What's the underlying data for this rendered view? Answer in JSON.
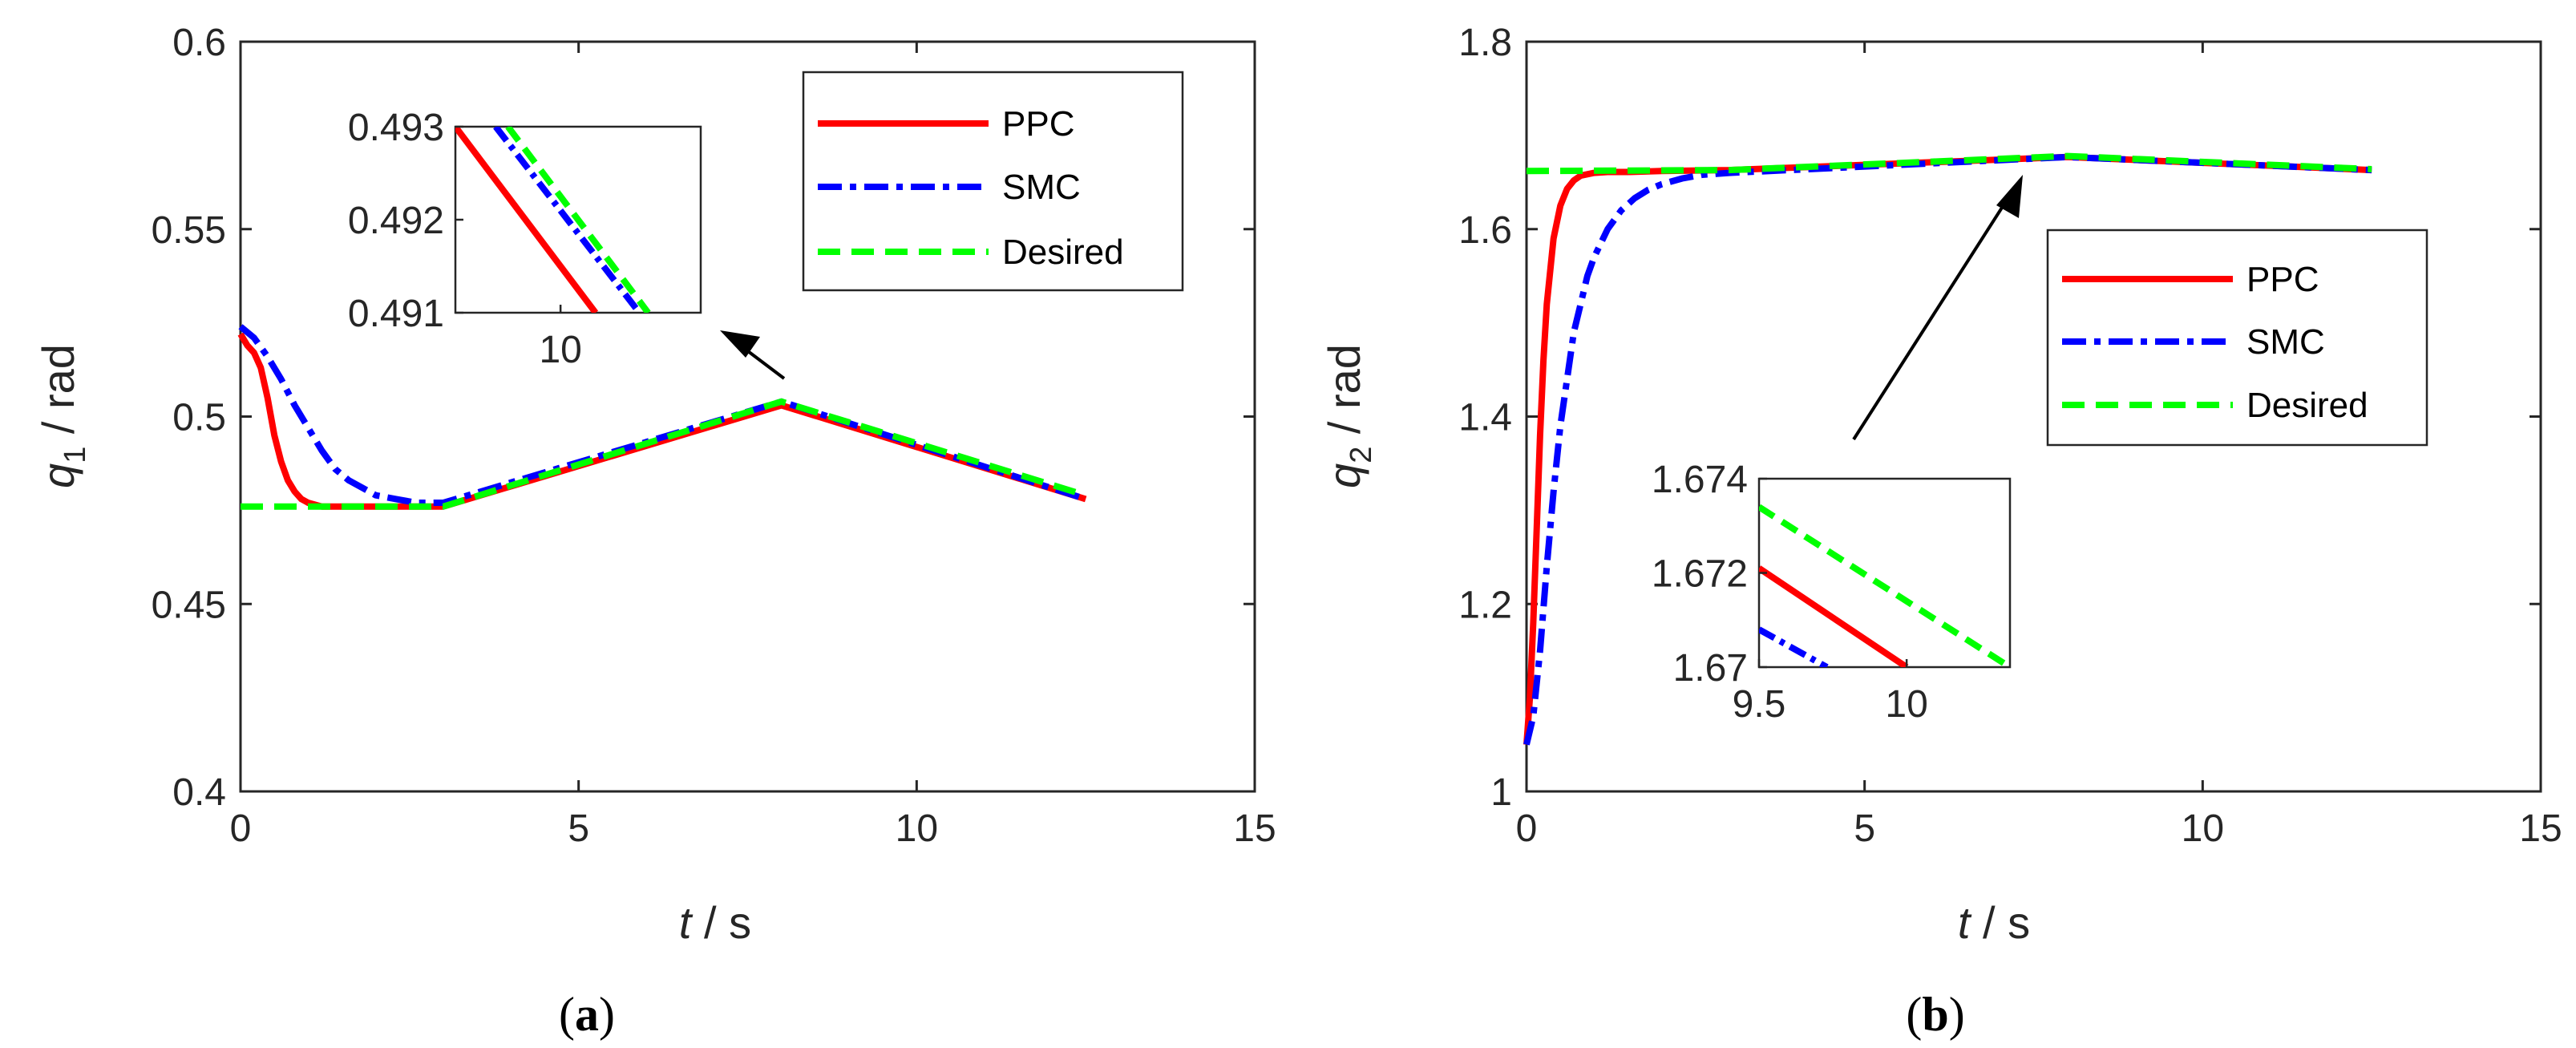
{
  "chart_data": [
    {
      "type": "line",
      "caption_open": "(",
      "caption_label": "a",
      "caption_close": ")",
      "ylabel_var": "q",
      "ylabel_sub": "1",
      "ylabel_unit": " / rad",
      "xlabel_var": "t",
      "xlabel_unit": " / s",
      "xlim": [
        0,
        15
      ],
      "ylim": [
        0.4,
        0.6
      ],
      "xticks": [
        "0",
        "5",
        "10",
        "15"
      ],
      "yticks": [
        "0.4",
        "0.45",
        "0.5",
        "0.55",
        "0.6"
      ],
      "ytick_values": [
        0.4,
        0.45,
        0.5,
        0.55,
        0.6
      ],
      "legend": [
        "PPC",
        "SMC",
        "Desired"
      ],
      "series": [
        {
          "name": "PPC",
          "color": "#ff0000",
          "style": "solid",
          "x": [
            0,
            0.1,
            0.2,
            0.3,
            0.4,
            0.5,
            0.6,
            0.7,
            0.8,
            0.9,
            1.0,
            1.2,
            1.5,
            2.0,
            3.0,
            8.0,
            12.5
          ],
          "y": [
            0.522,
            0.519,
            0.517,
            0.513,
            0.505,
            0.495,
            0.488,
            0.483,
            0.48,
            0.478,
            0.477,
            0.476,
            0.476,
            0.476,
            0.476,
            0.503,
            0.478
          ]
        },
        {
          "name": "SMC",
          "color": "#0000ff",
          "style": "dashdot",
          "x": [
            0,
            0.2,
            0.4,
            0.6,
            0.8,
            1.0,
            1.2,
            1.4,
            1.6,
            1.8,
            2.0,
            2.3,
            2.6,
            3.0,
            8.0,
            12.5
          ],
          "y": [
            0.524,
            0.521,
            0.516,
            0.51,
            0.503,
            0.497,
            0.491,
            0.486,
            0.483,
            0.481,
            0.479,
            0.478,
            0.477,
            0.477,
            0.504,
            0.478
          ]
        },
        {
          "name": "Desired",
          "color": "#00ff00",
          "style": "dashed",
          "x": [
            0,
            3.0,
            8.0,
            12.5
          ],
          "y": [
            0.476,
            0.476,
            0.504,
            0.479
          ]
        }
      ],
      "inset": {
        "xlim": [
          9.4,
          10.8
        ],
        "ylim": [
          0.491,
          0.493
        ],
        "xticks": [
          "10"
        ],
        "xtick_values": [
          10
        ],
        "yticks": [
          "0.493",
          "0.492",
          "0.491"
        ],
        "ytick_values": [
          0.493,
          0.492,
          0.491
        ],
        "series": [
          {
            "name": "PPC",
            "x": [
              9.4,
              10.2
            ],
            "y": [
              0.493,
              0.491
            ]
          },
          {
            "name": "SMC",
            "x": [
              9.63,
              10.45
            ],
            "y": [
              0.493,
              0.491
            ]
          },
          {
            "name": "Desired",
            "x": [
              9.7,
              10.5
            ],
            "y": [
              0.493,
              0.491
            ]
          }
        ]
      }
    },
    {
      "type": "line",
      "caption_open": "(",
      "caption_label": "b",
      "caption_close": ")",
      "ylabel_var": "q",
      "ylabel_sub": "2",
      "ylabel_unit": " / rad",
      "xlabel_var": "t",
      "xlabel_unit": " / s",
      "xlim": [
        0,
        15
      ],
      "ylim": [
        1.0,
        1.8
      ],
      "xticks": [
        "0",
        "5",
        "10",
        "15"
      ],
      "yticks": [
        "1",
        "1.2",
        "1.4",
        "1.6",
        "1.8"
      ],
      "ytick_values": [
        1.0,
        1.2,
        1.4,
        1.6,
        1.8
      ],
      "legend": [
        "PPC",
        "SMC",
        "Desired"
      ],
      "series": [
        {
          "name": "PPC",
          "color": "#ff0000",
          "style": "solid",
          "x": [
            0,
            0.05,
            0.1,
            0.15,
            0.2,
            0.25,
            0.3,
            0.4,
            0.5,
            0.6,
            0.7,
            0.8,
            1.0,
            1.2,
            1.5,
            2.0,
            3.0,
            8.0,
            12.5
          ],
          "y": [
            1.05,
            1.1,
            1.18,
            1.28,
            1.38,
            1.46,
            1.52,
            1.59,
            1.625,
            1.643,
            1.652,
            1.657,
            1.66,
            1.661,
            1.661,
            1.662,
            1.663,
            1.677,
            1.663
          ]
        },
        {
          "name": "SMC",
          "color": "#0000ff",
          "style": "dashdot",
          "x": [
            0,
            0.1,
            0.2,
            0.3,
            0.4,
            0.5,
            0.6,
            0.7,
            0.8,
            0.9,
            1.0,
            1.2,
            1.4,
            1.6,
            1.8,
            2.0,
            2.3,
            2.6,
            3.0,
            8.0,
            12.5
          ],
          "y": [
            1.05,
            1.08,
            1.15,
            1.24,
            1.32,
            1.39,
            1.44,
            1.49,
            1.52,
            1.55,
            1.57,
            1.6,
            1.62,
            1.633,
            1.642,
            1.648,
            1.654,
            1.658,
            1.66,
            1.677,
            1.663
          ]
        },
        {
          "name": "Desired",
          "color": "#00ff00",
          "style": "dashed",
          "x": [
            0,
            3.0,
            8.0,
            12.5
          ],
          "y": [
            1.662,
            1.663,
            1.678,
            1.664
          ]
        }
      ],
      "inset": {
        "xlim": [
          9.5,
          10.35
        ],
        "ylim": [
          1.67,
          1.674
        ],
        "xticks": [
          "9.5",
          "10"
        ],
        "xtick_values": [
          9.5,
          10
        ],
        "yticks": [
          "1.674",
          "1.672",
          "1.67"
        ],
        "ytick_values": [
          1.674,
          1.672,
          1.67
        ],
        "series": [
          {
            "name": "PPC",
            "x": [
              9.5,
              10.0
            ],
            "y": [
              1.6721,
              1.67
            ]
          },
          {
            "name": "SMC",
            "x": [
              9.5,
              9.73
            ],
            "y": [
              1.6708,
              1.67
            ]
          },
          {
            "name": "Desired",
            "x": [
              9.5,
              10.35
            ],
            "y": [
              1.6734,
              1.67
            ]
          }
        ]
      }
    }
  ]
}
